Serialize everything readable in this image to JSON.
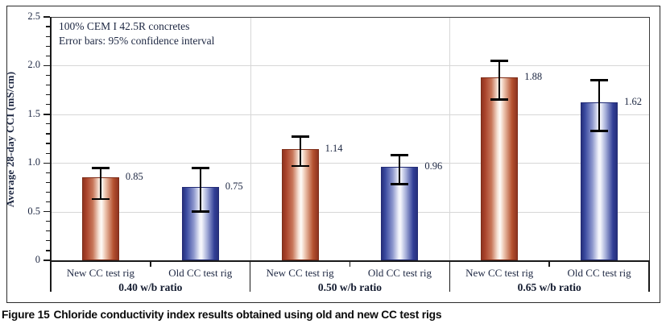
{
  "figure": {
    "caption_prefix": "Figure 15",
    "caption_text": "Chloride conductivity index results obtained using old and new CC test rigs"
  },
  "chart_data": {
    "type": "bar",
    "title": "",
    "xlabel": "",
    "ylabel": "Average 28-day CCI (mS/cm)",
    "ylim": [
      0,
      2.5
    ],
    "ytick_interval": 0.5,
    "minor_tick_interval": 0.1,
    "ytick_labels": [
      "0",
      "0.5",
      "1.0",
      "1.5",
      "2.0",
      "2.5"
    ],
    "grid": true,
    "legend_position": "none",
    "annotation_lines": [
      "100% CEM I 42.5R concretes",
      "Error bars: 95% confidence interval"
    ],
    "error_bars": "95% confidence interval",
    "groups": [
      {
        "label": "0.40 w/b ratio",
        "bars": [
          {
            "category": "New CC test rig",
            "series": "new",
            "value": 0.85,
            "value_label": "0.85",
            "ci_low": 0.63,
            "ci_high": 0.95
          },
          {
            "category": "Old CC test rig",
            "series": "old",
            "value": 0.75,
            "value_label": "0.75",
            "ci_low": 0.5,
            "ci_high": 0.95
          }
        ]
      },
      {
        "label": "0.50 w/b ratio",
        "bars": [
          {
            "category": "New CC test rig",
            "series": "new",
            "value": 1.14,
            "value_label": "1.14",
            "ci_low": 0.97,
            "ci_high": 1.27
          },
          {
            "category": "Old CC test rig",
            "series": "old",
            "value": 0.96,
            "value_label": "0.96",
            "ci_low": 0.78,
            "ci_high": 1.08
          }
        ]
      },
      {
        "label": "0.65 w/b ratio",
        "bars": [
          {
            "category": "New CC test rig",
            "series": "new",
            "value": 1.88,
            "value_label": "1.88",
            "ci_low": 1.65,
            "ci_high": 2.05
          },
          {
            "category": "Old CC test rig",
            "series": "old",
            "value": 1.62,
            "value_label": "1.62",
            "ci_low": 1.33,
            "ci_high": 1.85
          }
        ]
      }
    ],
    "colors": {
      "new_bar_dark": "#8e3420",
      "new_bar_light": "#fefcf9",
      "old_bar_dark": "#27307c",
      "old_bar_light": "#f6f7fc",
      "gridline": "#d7d7d7",
      "axis": "#1a1a1a",
      "text": "#1d2742",
      "error_bar": "#000000"
    }
  }
}
